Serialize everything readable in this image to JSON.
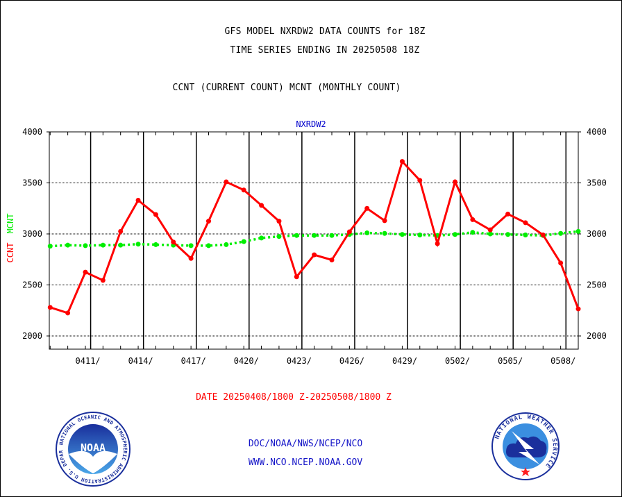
{
  "header": {
    "title_line1": "GFS MODEL NXRDW2 DATA COUNTS for 18Z",
    "title_line2": "TIME SERIES ENDING IN 20250508 18Z",
    "subtitle": "CCNT (CURRENT COUNT) MCNT (MONTHLY COUNT)"
  },
  "chart_data": {
    "type": "line",
    "title": "NXRDW2",
    "ylabel_left": [
      "CCNT",
      "MCNT"
    ],
    "xlabel": "DATE 20250408/1800 Z-20250508/1800 Z",
    "ylim": [
      1900,
      4000
    ],
    "yticks": [
      2000,
      2500,
      3000,
      3500,
      4000
    ],
    "grid": true,
    "x_tick_labels": [
      "0411/",
      "0414/",
      "0417/",
      "0420/",
      "0423/",
      "0426/",
      "0429/",
      "0502/",
      "0505/",
      "0508/"
    ],
    "x_tick_days": [
      2,
      5,
      8,
      11,
      14,
      17,
      20,
      23,
      26,
      29
    ],
    "x_day_range": [
      -0.05,
      30.0
    ],
    "colors": {
      "ccnt": "#ff0000",
      "mcnt": "#00ee00",
      "title": "#0000cc"
    },
    "series": [
      {
        "name": "CCNT",
        "days": [
          0,
          1,
          2,
          3,
          4,
          5,
          6,
          7,
          8,
          9,
          10,
          11,
          12,
          13,
          14,
          15,
          16,
          17,
          18,
          19,
          20,
          21,
          22,
          23,
          24,
          25,
          26,
          27,
          28,
          29,
          30
        ],
        "values": [
          2280,
          2225,
          2625,
          2545,
          3025,
          3330,
          3190,
          2920,
          2760,
          3125,
          3510,
          3430,
          3280,
          3125,
          2580,
          2795,
          2745,
          3020,
          3250,
          3130,
          3710,
          3525,
          2905,
          3510,
          3140,
          3040,
          3195,
          3110,
          2990,
          2715,
          2265
        ]
      },
      {
        "name": "MCNT",
        "days": [
          0,
          1,
          2,
          3,
          4,
          5,
          6,
          7,
          8,
          9,
          10,
          11,
          12,
          13,
          14,
          15,
          16,
          17,
          18,
          19,
          20,
          21,
          22,
          23,
          24,
          25,
          26,
          27,
          28,
          29,
          30
        ],
        "values": [
          2880,
          2890,
          2885,
          2890,
          2890,
          2900,
          2895,
          2890,
          2885,
          2885,
          2895,
          2925,
          2960,
          2975,
          2985,
          2985,
          2985,
          2995,
          3010,
          3005,
          2995,
          2990,
          2985,
          2995,
          3015,
          3000,
          2995,
          2990,
          2985,
          3005,
          3025
        ]
      }
    ]
  },
  "footer": {
    "line1": "DOC/NOAA/NWS/NCEP/NCO",
    "line2": "WWW.NCO.NCEP.NOAA.GOV"
  },
  "logos": {
    "left": {
      "icon": "noaa-logo",
      "text": "NOAA",
      "ring_text": "NATIONAL OCEANIC AND ATMOSPHERIC ADMINISTRATION U.S. DEPARTMENT OF COMMERCE"
    },
    "right": {
      "icon": "nws-logo",
      "ring_text": "NATIONAL WEATHER SERVICE"
    }
  }
}
